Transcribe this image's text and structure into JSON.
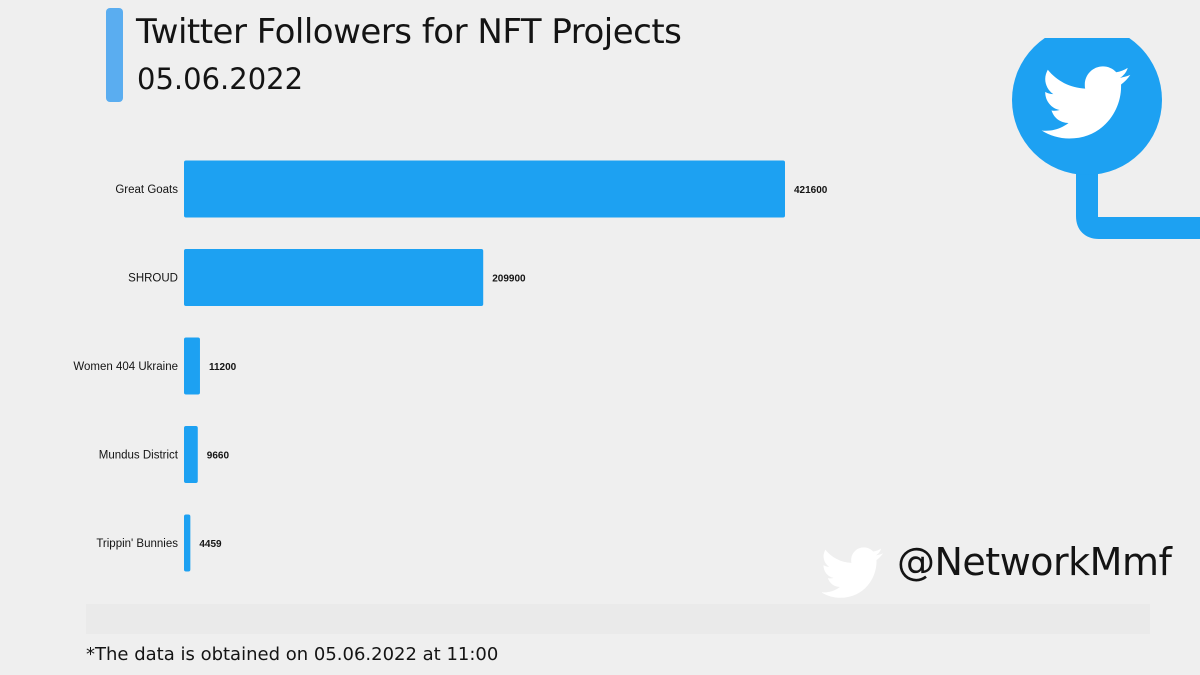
{
  "title": "Twitter Followers for NFT Projects",
  "subtitle": "05.06.2022",
  "footnote": "*The data is obtained on 05.06.2022 at 11:00",
  "handle": "@NetworkMmf",
  "colors": {
    "accent": "#5aadf0",
    "bar": "#1da1f2",
    "twitter": "#1da1f2",
    "text": "#141414"
  },
  "icons": {
    "badge": "twitter-bird-icon",
    "handle_icon": "twitter-bird-icon"
  },
  "chart_data": {
    "type": "bar",
    "orientation": "horizontal",
    "categories": [
      "Great Goats",
      "SHROUD",
      "Women 404 Ukraine",
      "Mundus District",
      "Trippin' Bunnies"
    ],
    "values": [
      421600,
      209900,
      11200,
      9660,
      4459
    ],
    "data_labels": [
      "421600",
      "209900",
      "11200",
      "9660",
      "4459"
    ],
    "title": "Twitter Followers for NFT Projects",
    "xlabel": "",
    "ylabel": "",
    "xlim": [
      0,
      421600
    ],
    "grid": false,
    "legend": "none"
  }
}
